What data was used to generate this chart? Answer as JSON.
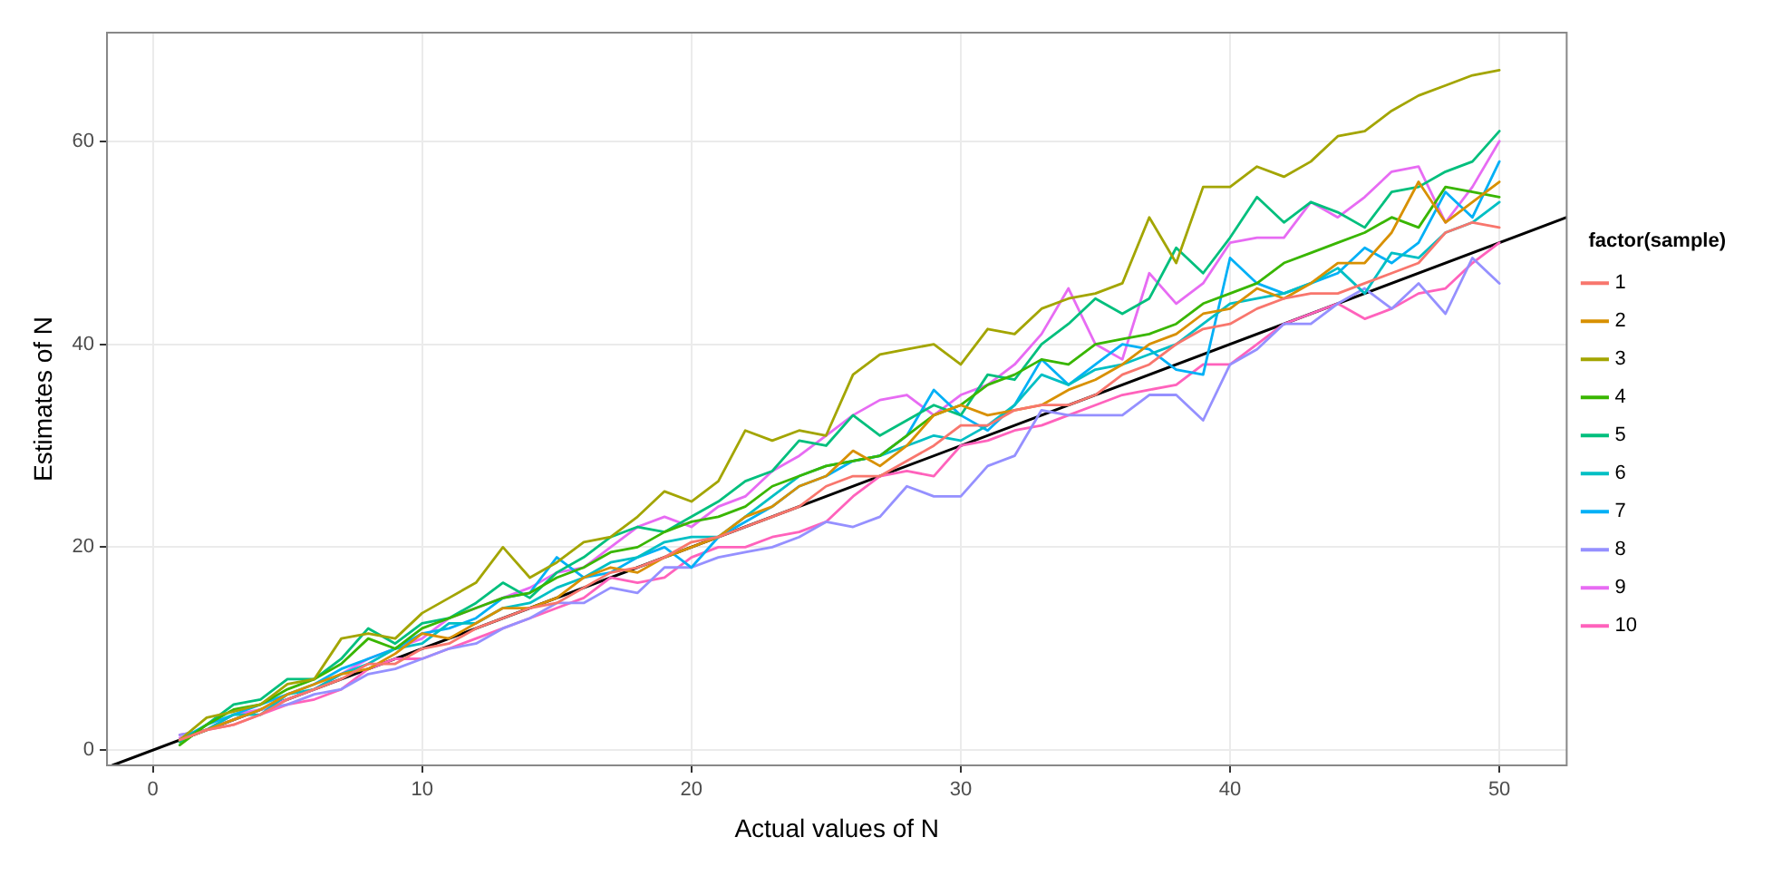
{
  "chart_data": {
    "type": "line",
    "xlabel": "Actual values of N",
    "ylabel": "Estimates of N",
    "legend_title": "factor(sample)",
    "legend": "right",
    "grid": true,
    "marker": "none",
    "line_style": "solid",
    "x": [
      1,
      2,
      3,
      4,
      5,
      6,
      7,
      8,
      9,
      10,
      11,
      12,
      13,
      14,
      15,
      16,
      17,
      18,
      19,
      20,
      21,
      22,
      23,
      24,
      25,
      26,
      27,
      28,
      29,
      30,
      31,
      32,
      33,
      34,
      35,
      36,
      37,
      38,
      39,
      40,
      41,
      42,
      43,
      44,
      45,
      46,
      47,
      48,
      49,
      50
    ],
    "xlim": [
      -1.7,
      52.5
    ],
    "xticks": [
      0,
      10,
      20,
      30,
      40,
      50
    ],
    "ylim": [
      -1.5,
      70.7
    ],
    "yticks": [
      0,
      20,
      40,
      60
    ],
    "series": [
      {
        "name": "1",
        "color": "#f8766d",
        "values": [
          1,
          2,
          2.5,
          3.5,
          5,
          6,
          7,
          8.5,
          8.5,
          10,
          10.5,
          12,
          13,
          14,
          14.5,
          16,
          17.5,
          18,
          19,
          20.5,
          21,
          22,
          23,
          24,
          26,
          27,
          27,
          28.5,
          30,
          32,
          32,
          33.5,
          34,
          34,
          35,
          37,
          38,
          40,
          41.5,
          42,
          43.5,
          44.5,
          45,
          45,
          46,
          47,
          48,
          51,
          52,
          51.5
        ]
      },
      {
        "name": "2",
        "color": "#d89000",
        "values": [
          1,
          2,
          3,
          4,
          5.5,
          6.5,
          7.5,
          8,
          9.5,
          11.5,
          11,
          12.5,
          14,
          14,
          15,
          17,
          18,
          17.5,
          19,
          20,
          21,
          23,
          24,
          26,
          27,
          29.5,
          28,
          30,
          33,
          34,
          33,
          33.5,
          34,
          35.5,
          36.5,
          38,
          40,
          41,
          43,
          43.5,
          45.5,
          44.5,
          46,
          48,
          48,
          51,
          56,
          52,
          54,
          56
        ]
      },
      {
        "name": "3",
        "color": "#a3a500",
        "values": [
          1,
          3.2,
          3.8,
          4.5,
          6.5,
          7,
          11,
          11.5,
          11,
          13.5,
          15,
          16.5,
          20,
          17,
          18.5,
          20.5,
          21,
          23,
          25.5,
          24.5,
          26.5,
          31.5,
          30.5,
          31.5,
          31,
          37,
          39,
          39.5,
          40,
          38,
          41.5,
          41,
          43.5,
          44.5,
          45,
          46,
          52.5,
          48,
          55.5,
          55.5,
          57.5,
          56.5,
          58,
          60.5,
          61,
          63,
          64.5,
          65.5,
          66.5,
          67
        ]
      },
      {
        "name": "4",
        "color": "#39b600",
        "values": [
          0.5,
          2.5,
          4,
          4.5,
          6,
          7,
          8.5,
          11,
          10,
          12,
          13,
          14,
          15,
          15.5,
          17,
          18,
          19.5,
          20,
          21.5,
          22.5,
          23,
          24,
          26,
          27,
          28,
          28.5,
          29,
          31,
          33,
          34,
          36,
          37,
          38.5,
          38,
          40,
          40.5,
          41,
          42,
          44,
          45,
          46,
          48,
          49,
          50,
          51,
          52.5,
          51.5,
          55.5,
          55,
          54.5
        ]
      },
      {
        "name": "5",
        "color": "#00bf7d",
        "values": [
          0.8,
          2.5,
          4.5,
          5,
          7,
          7,
          9,
          12,
          10.5,
          12.5,
          13,
          14.5,
          16.5,
          15,
          17.5,
          19,
          21,
          22,
          21.5,
          23,
          24.5,
          26.5,
          27.5,
          30.5,
          30,
          33,
          31,
          32.5,
          34,
          33,
          37,
          36.5,
          40,
          42,
          44.5,
          43,
          44.5,
          49.5,
          47,
          50.5,
          54.5,
          52,
          54,
          53,
          51.5,
          55,
          55.5,
          57,
          58,
          61
        ]
      },
      {
        "name": "6",
        "color": "#00bfc4",
        "values": [
          1,
          2,
          3.5,
          3.5,
          5.5,
          6,
          7.5,
          8.5,
          10,
          10.5,
          12.5,
          12.5,
          14,
          14.5,
          16,
          17,
          18.5,
          19,
          20.5,
          21,
          21,
          23,
          25,
          27,
          28,
          28.5,
          29,
          30,
          31,
          30.5,
          32,
          34,
          37,
          36,
          37.5,
          38,
          39,
          40,
          42,
          44,
          44.5,
          45,
          46,
          47.5,
          45,
          49,
          48.5,
          51,
          52,
          54
        ]
      },
      {
        "name": "7",
        "color": "#00b0f6",
        "values": [
          1,
          2.5,
          3.5,
          4.5,
          5.5,
          6.5,
          8,
          9,
          10,
          11.5,
          12,
          13,
          15,
          15.5,
          19,
          17,
          17.5,
          19,
          20,
          18,
          21,
          22.5,
          24,
          26,
          27,
          28.5,
          29,
          31,
          35.5,
          33,
          31.5,
          34,
          38.5,
          36,
          38,
          40,
          39.5,
          37.5,
          37,
          48.5,
          46,
          45,
          46,
          47,
          49.5,
          48,
          50,
          55,
          52.5,
          58
        ]
      },
      {
        "name": "8",
        "color": "#9590ff",
        "values": [
          1.5,
          2,
          3,
          4,
          4.5,
          5.5,
          6,
          7.5,
          8,
          9,
          10,
          10.5,
          12,
          13,
          14.5,
          14.5,
          16,
          15.5,
          18,
          18,
          19,
          19.5,
          20,
          21,
          22.5,
          22,
          23,
          26,
          25,
          25,
          28,
          29,
          33.5,
          33,
          33,
          33,
          35,
          35,
          32.5,
          38,
          39.5,
          42,
          42,
          44,
          45.5,
          43.5,
          46,
          43,
          48.5,
          46
        ]
      },
      {
        "name": "9",
        "color": "#e76bf3",
        "values": [
          1.2,
          2,
          3.5,
          4,
          5,
          6,
          7.5,
          9,
          10,
          11,
          13,
          14,
          15,
          16,
          17.5,
          18,
          20,
          22,
          23,
          22,
          24,
          25,
          27.5,
          29,
          31,
          33,
          34.5,
          35,
          33,
          35,
          36,
          38,
          41,
          45.5,
          40,
          38.5,
          47,
          44,
          46,
          50,
          50.5,
          50.5,
          54,
          52.5,
          54.5,
          57,
          57.5,
          52,
          55.5,
          60
        ]
      },
      {
        "name": "10",
        "color": "#ff62bc",
        "values": [
          1.5,
          2,
          2.5,
          3.5,
          4.5,
          5,
          6,
          8,
          9,
          9,
          10,
          11,
          12,
          13,
          14,
          15,
          17,
          16.5,
          17,
          19,
          20,
          20,
          21,
          21.5,
          22.5,
          25,
          27,
          27.5,
          27,
          30,
          30.5,
          31.5,
          32,
          33,
          34,
          35,
          35.5,
          36,
          38,
          38,
          40,
          42,
          43,
          44,
          42.5,
          43.5,
          45,
          45.5,
          48,
          50
        ]
      },
      {
        "type": "line",
        "color": "#000000",
        "x": [
          -1.5,
          52.5
        ],
        "values": [
          -1.5,
          52.5
        ]
      }
    ]
  }
}
